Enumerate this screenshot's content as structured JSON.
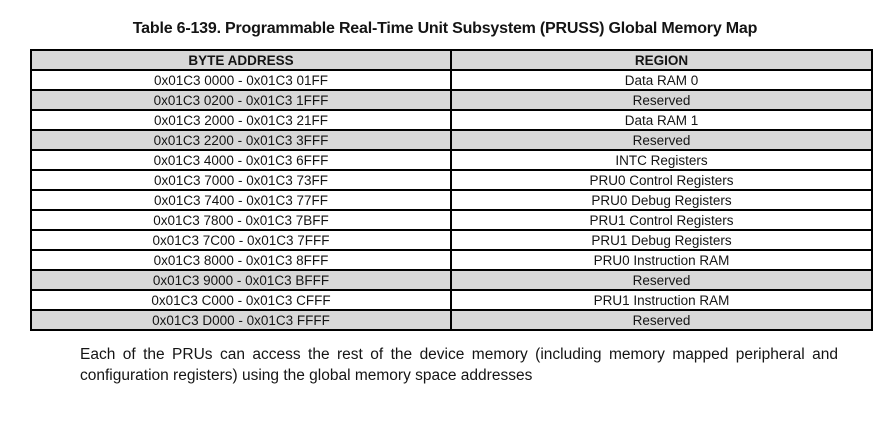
{
  "title": "Table 6-139. Programmable Real-Time Unit Subsystem (PRUSS) Global Memory Map",
  "table": {
    "headers": [
      "BYTE ADDRESS",
      "REGION"
    ],
    "rows": [
      {
        "address": "0x01C3 0000 - 0x01C3 01FF",
        "region": "Data RAM 0",
        "shaded": false
      },
      {
        "address": "0x01C3 0200 - 0x01C3 1FFF",
        "region": "Reserved",
        "shaded": true
      },
      {
        "address": "0x01C3 2000 - 0x01C3 21FF",
        "region": "Data RAM 1",
        "shaded": false
      },
      {
        "address": "0x01C3 2200 - 0x01C3 3FFF",
        "region": "Reserved",
        "shaded": true
      },
      {
        "address": "0x01C3 4000 - 0x01C3 6FFF",
        "region": "INTC Registers",
        "shaded": false
      },
      {
        "address": "0x01C3 7000 - 0x01C3 73FF",
        "region": "PRU0 Control Registers",
        "shaded": false
      },
      {
        "address": "0x01C3 7400 - 0x01C3 77FF",
        "region": "PRU0 Debug Registers",
        "shaded": false
      },
      {
        "address": "0x01C3 7800 - 0x01C3 7BFF",
        "region": "PRU1 Control Registers",
        "shaded": false
      },
      {
        "address": "0x01C3 7C00 - 0x01C3 7FFF",
        "region": "PRU1 Debug Registers",
        "shaded": false
      },
      {
        "address": "0x01C3 8000 - 0x01C3 8FFF",
        "region": "PRU0 Instruction RAM",
        "shaded": false
      },
      {
        "address": "0x01C3 9000 - 0x01C3 BFFF",
        "region": "Reserved",
        "shaded": true
      },
      {
        "address": "0x01C3 C000 - 0x01C3 CFFF",
        "region": "PRU1 Instruction RAM",
        "shaded": false
      },
      {
        "address": "0x01C3 D000 - 0x01C3 FFFF",
        "region": "Reserved",
        "shaded": true
      }
    ]
  },
  "footnote": "Each of the PRUs can access the rest of the device memory (including memory mapped peripheral and configuration registers) using the global memory space addresses",
  "colors": {
    "row_shade": "#d8d8d8",
    "border": "#000000"
  }
}
